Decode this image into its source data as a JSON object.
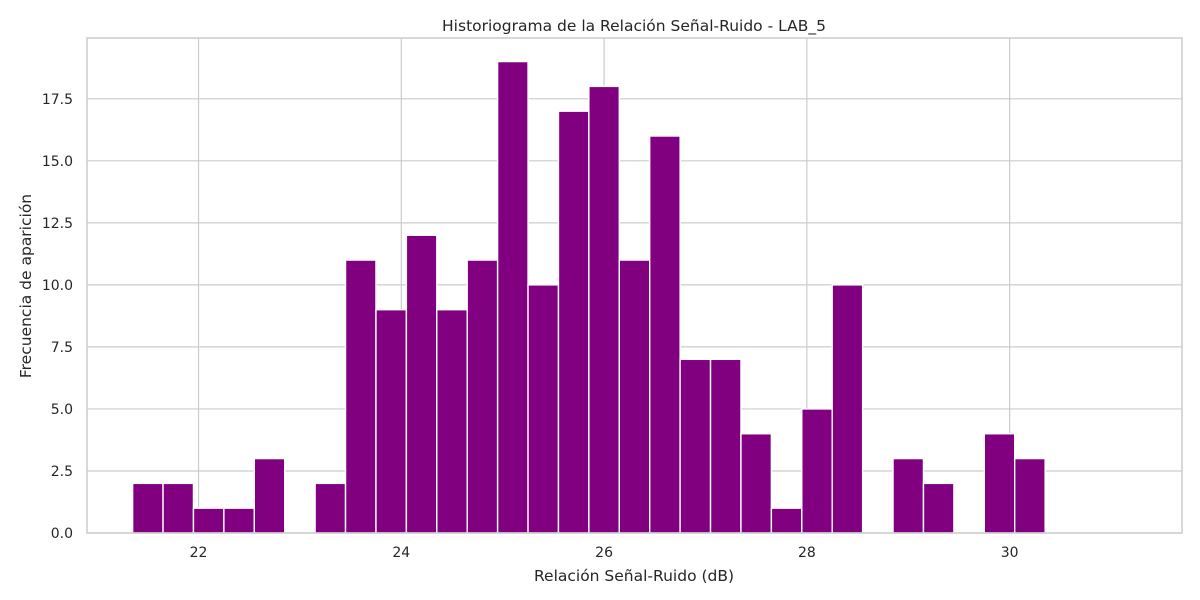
{
  "chart_data": {
    "type": "bar",
    "title": "Historiograma de la Relación Señal-Ruido - LAB_5",
    "xlabel": "Relación Señal-Ruido (dB)",
    "ylabel": "Frecuencia de aparición",
    "bar_color": "#800080",
    "grid": true,
    "x_range": [
      20.9,
      31.7
    ],
    "ylim": [
      0,
      19.95
    ],
    "x_ticks": [
      22,
      24,
      26,
      28,
      30
    ],
    "y_ticks": [
      0,
      2.5,
      5,
      7.5,
      10,
      12.5,
      15,
      17.5
    ],
    "y_tick_labels": [
      "0.0",
      "2.5",
      "5.0",
      "7.5",
      "10.0",
      "12.5",
      "15.0",
      "17.5"
    ],
    "bin_start": 21.35,
    "bin_width": 0.3,
    "values": [
      2,
      2,
      1,
      1,
      3,
      0,
      2,
      11,
      9,
      12,
      9,
      11,
      19,
      10,
      17,
      18,
      11,
      16,
      7,
      7,
      4,
      1,
      5,
      10,
      0,
      3,
      2,
      0,
      4,
      3
    ]
  }
}
